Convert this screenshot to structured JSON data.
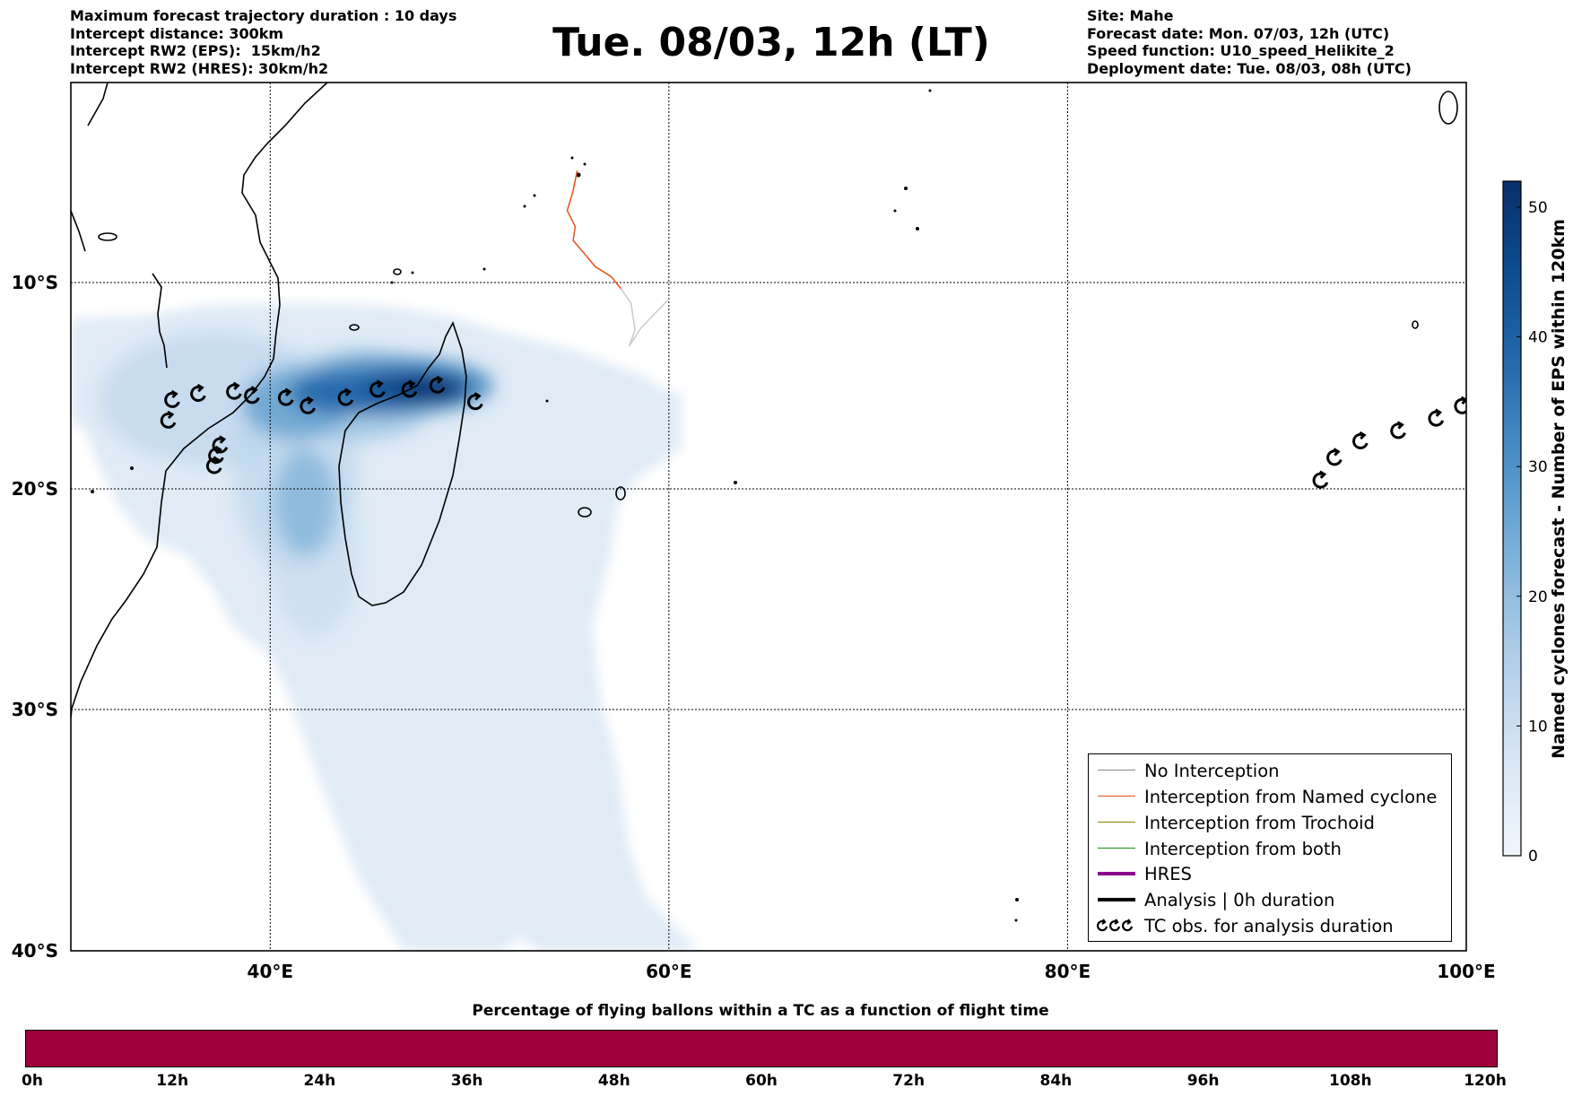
{
  "header": {
    "left": [
      "Maximum forecast trajectory duration : 10 days",
      "Intercept distance: 300km",
      "Intercept RW2 (EPS):  15km/h2",
      "Intercept RW2 (HRES): 30km/h2"
    ],
    "title": "Tue. 08/03, 12h (LT)",
    "right": [
      "Site: Mahe",
      "Forecast date: Mon. 07/03, 12h (UTC)",
      "Speed function: U10_speed_Helikite_2",
      "Deployment date: Tue. 08/03, 08h (UTC)"
    ]
  },
  "map": {
    "lon_ticks": [
      {
        "lon": 40,
        "label": "40°E"
      },
      {
        "lon": 60,
        "label": "60°E"
      },
      {
        "lon": 80,
        "label": "80°E"
      },
      {
        "lon": 100,
        "label": "100°E"
      }
    ],
    "lat_ticks": [
      {
        "lat": -10,
        "label": "10°S"
      },
      {
        "lat": -20,
        "label": "20°S"
      },
      {
        "lat": -30,
        "label": "30°S"
      },
      {
        "lat": -40,
        "label": "40°S"
      }
    ],
    "lon_range": [
      30,
      100
    ],
    "lat_range": [
      -40,
      0
    ],
    "grid": true,
    "tc_symbols": [
      {
        "lon": 35.1,
        "lat": -15.7
      },
      {
        "lon": 36.4,
        "lat": -15.4
      },
      {
        "lon": 38.2,
        "lat": -15.3
      },
      {
        "lon": 39.1,
        "lat": -15.5
      },
      {
        "lon": 40.8,
        "lat": -15.6
      },
      {
        "lon": 41.9,
        "lat": -16.0
      },
      {
        "lon": 43.8,
        "lat": -15.6
      },
      {
        "lon": 45.4,
        "lat": -15.2
      },
      {
        "lon": 47.0,
        "lat": -15.2
      },
      {
        "lon": 48.4,
        "lat": -15.0
      },
      {
        "lon": 50.3,
        "lat": -15.8
      },
      {
        "lon": 34.9,
        "lat": -16.7
      },
      {
        "lon": 37.5,
        "lat": -17.9
      },
      {
        "lon": 37.3,
        "lat": -18.4
      },
      {
        "lon": 37.2,
        "lat": -18.9
      },
      {
        "lon": 92.7,
        "lat": -19.6
      },
      {
        "lon": 93.4,
        "lat": -18.5
      },
      {
        "lon": 94.7,
        "lat": -17.7
      },
      {
        "lon": 96.6,
        "lat": -17.2
      },
      {
        "lon": 98.5,
        "lat": -16.6
      },
      {
        "lon": 99.8,
        "lat": -16.0
      }
    ],
    "trajectory_named_cyclone": [
      [
        55.4,
        -4.4
      ],
      [
        55.2,
        -5.4
      ],
      [
        54.9,
        -6.4
      ],
      [
        55.3,
        -7.2
      ],
      [
        55.2,
        -7.9
      ],
      [
        55.8,
        -8.6
      ],
      [
        56.3,
        -9.2
      ],
      [
        57.1,
        -9.7
      ],
      [
        57.6,
        -10.3
      ]
    ],
    "trajectory_no_interception": [
      [
        57.6,
        -10.3
      ],
      [
        58.1,
        -11.0
      ],
      [
        58.3,
        -12.3
      ],
      [
        58.0,
        -13.1
      ],
      [
        58.6,
        -12.2
      ],
      [
        59.4,
        -11.4
      ],
      [
        60.0,
        -10.8
      ]
    ]
  },
  "legend": {
    "items": [
      {
        "label": "No Interception",
        "color": "#888888",
        "width": 1.5
      },
      {
        "label": "Interception from Named cyclone",
        "color": "#e8501a",
        "width": 1.5
      },
      {
        "label": "Interception from Trochoid",
        "color": "#8b8000",
        "width": 1.5
      },
      {
        "label": "Interception from both",
        "color": "#1a8a1a",
        "width": 1.5
      },
      {
        "label": "HRES",
        "color": "#8b008b",
        "width": 4
      },
      {
        "label": "Analysis | 0h duration",
        "color": "#000000",
        "width": 4
      },
      {
        "label": "TC obs. for analysis duration",
        "color": "#000000",
        "symbol": "tc"
      }
    ]
  },
  "colorbar": {
    "label": "Named cyclones forecast - Number of EPS within 120km",
    "ticks": [
      0,
      10,
      20,
      30,
      40,
      50
    ],
    "max": 52,
    "colors": [
      "#f0f5fc",
      "#dbe8f6",
      "#bcd5ec",
      "#96c0e0",
      "#6aa5d2",
      "#4186c0",
      "#2164a8",
      "#0d4a8c",
      "#08306b"
    ]
  },
  "time_bar": {
    "title": "Percentage of flying ballons within a TC as a function of flight time",
    "color": "#a0003c",
    "ticks": [
      "0h",
      "12h",
      "24h",
      "36h",
      "48h",
      "60h",
      "72h",
      "84h",
      "96h",
      "108h",
      "120h"
    ]
  }
}
